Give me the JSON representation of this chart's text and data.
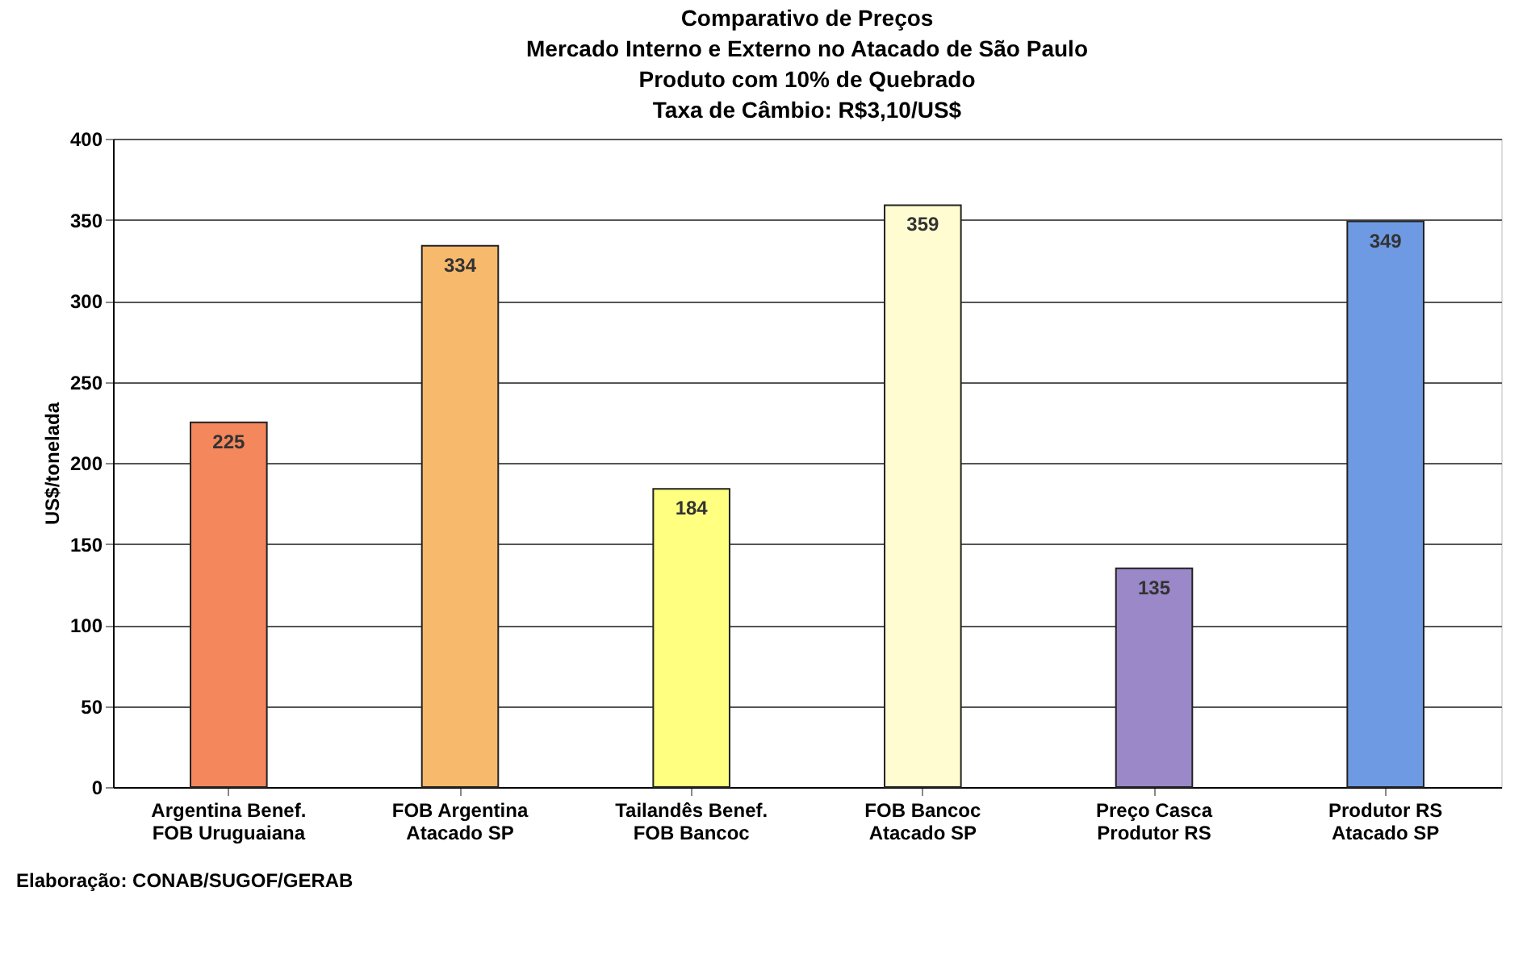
{
  "chart_data": {
    "type": "bar",
    "title": "Comparativo de Preços\nMercado Interno e Externo no Atacado de São Paulo\nProduto com 10% de Quebrado\nTaxa de Câmbio: R$3,10/US$",
    "ylabel": "US$/tonelada",
    "categories": [
      "Argentina Benef.\nFOB Uruguaiana",
      "FOB Argentina\nAtacado SP",
      "Tailandês Benef.\nFOB Bancoc",
      "FOB Bancoc\nAtacado SP",
      "Preço Casca\nProdutor RS",
      "Produtor RS\nAtacado SP"
    ],
    "values": [
      225,
      334,
      184,
      359,
      135,
      349
    ],
    "colors": [
      "#f4875c",
      "#f7b96c",
      "#ffff80",
      "#fffcd2",
      "#9b88c8",
      "#6e9ae4"
    ],
    "ylim": [
      0,
      400
    ],
    "yticks": [
      0,
      50,
      100,
      150,
      200,
      250,
      300,
      350,
      400
    ],
    "grid": "y",
    "data_labels": true,
    "annotations": [
      "Elaboração: CONAB/SUGOF/GERAB"
    ]
  }
}
